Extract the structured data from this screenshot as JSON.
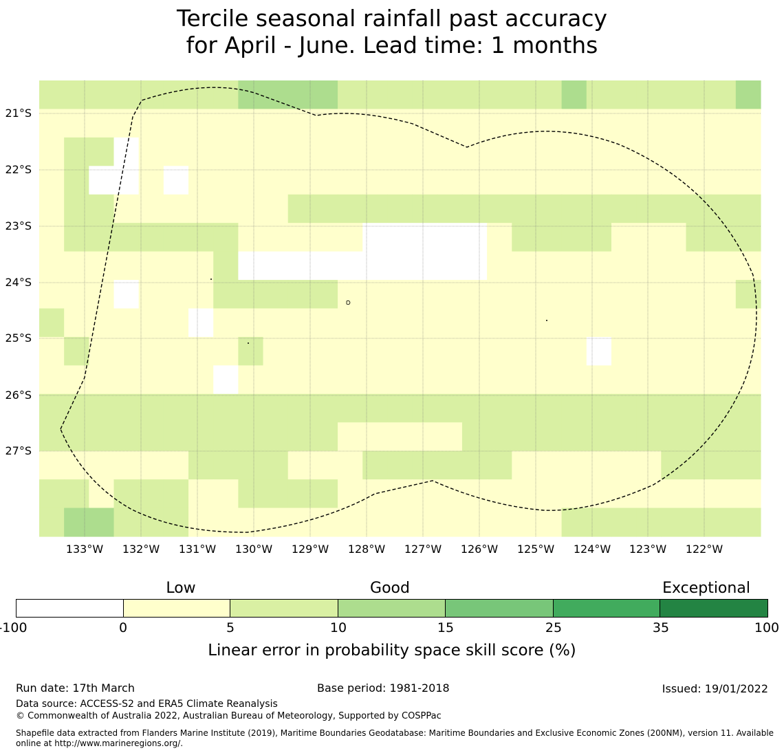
{
  "title": {
    "line1": "Tercile seasonal rainfall past accuracy",
    "line2": "for April - June. Lead time: 1 months"
  },
  "map": {
    "latitude_labels": [
      "21°S",
      "22°S",
      "23°S",
      "24°S",
      "25°S",
      "26°S",
      "27°S"
    ],
    "longitude_labels": [
      "133°W",
      "132°W",
      "131°W",
      "130°W",
      "129°W",
      "128°W",
      "127°W",
      "126°W",
      "125°W",
      "124°W",
      "123°W",
      "122°W"
    ],
    "category_colors": [
      "#ffffff",
      "#ffffcc",
      "#d9f0a3",
      "#addd8e",
      "#78c679",
      "#41ab5d",
      "#238443"
    ],
    "grid": [
      "22222222333322222222232222223",
      "11111111111111111111111111111",
      "12201111111111111111111111111",
      "12001011111111111111111111111",
      "12211111112222222222222222222",
      "12222222111110000012222111222",
      "11111112000000000011111111111",
      "11101112222211111111111111112",
      "21111101111111111111111111111",
      "12111111211111111111110111111",
      "11111110111111111111111111111",
      "22222222222222222222222222222",
      "22222222222211111222222222222",
      "11111122221112222221111112222",
      "22122211222211111111111111111",
      "23322211111111111111122222222"
    ]
  },
  "colorbar": {
    "category_labels": [
      "Low",
      "Good",
      "Exceptional"
    ],
    "ticks": [
      "-100",
      "0",
      "5",
      "10",
      "15",
      "25",
      "35",
      "100"
    ],
    "title": "Linear error in probability space skill score (%)"
  },
  "footer": {
    "run_date": "Run date: 17th March",
    "base_period": "Base period: 1981-2018",
    "issued": "Issued: 19/01/2022",
    "data_source": "Data source: ACCESS-S2 and ERA5 Climate Reanalysis",
    "copyright": "© Commonwealth of Australia 2022, Australian Bureau of Meteorology, Supported by COSPPac",
    "shapefile_line1": "Shapefile data extracted from Flanders Marine Institute (2019), Maritime Boundaries Geodatabase: Maritime Boundaries and Exclusive Economic Zones (200NM), version 11. Available",
    "shapefile_line2": "online at http://www.marineregions.org/."
  }
}
